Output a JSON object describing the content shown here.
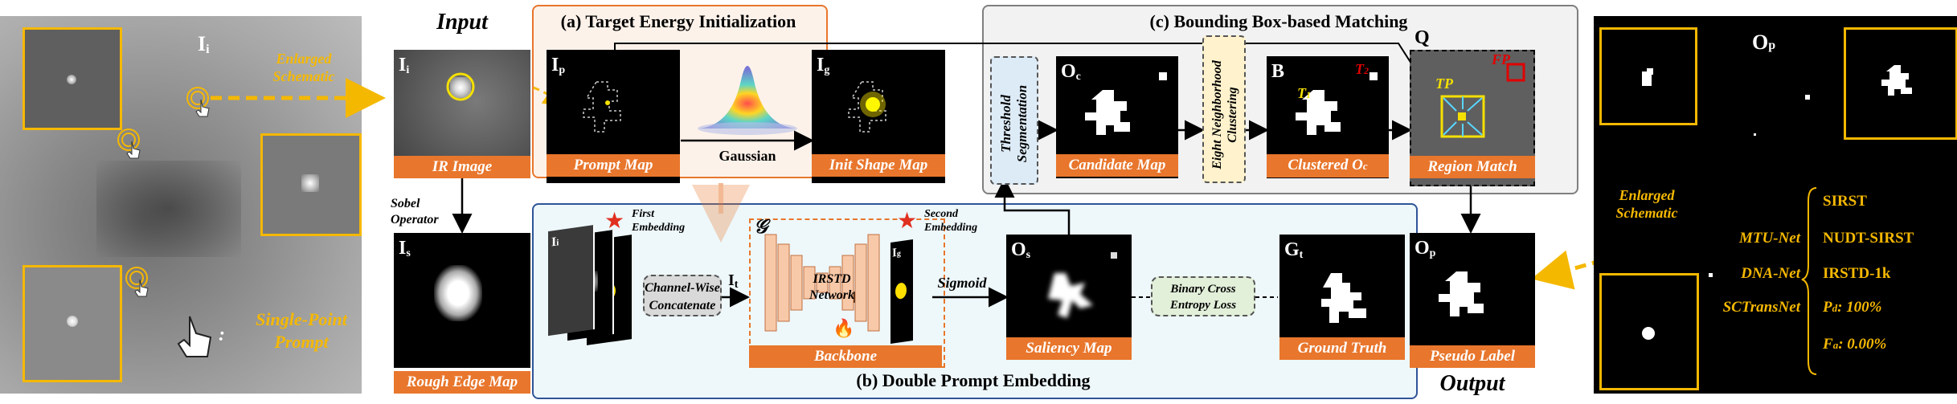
{
  "left_panel": {
    "label_main": "I",
    "label_sub": "i",
    "enlarged_schematic": "Enlarged Schematic",
    "single_point_prompt": "Single-Point Prompt",
    "colon": ":"
  },
  "input_section": {
    "title": "Input",
    "ir_image_label": "IR Image",
    "img_main": "I",
    "img_sub": "i",
    "sobel_operator": "Sobel Operator",
    "rough_edge_main": "I",
    "rough_edge_sub": "s",
    "rough_edge_label": "Rough Edge Map"
  },
  "section_a": {
    "title": "(a) Target Energy Initialization",
    "prompt_main": "I",
    "prompt_sub": "p",
    "prompt_label": "Prompt Map",
    "gaussian": "Gaussian",
    "init_main": "I",
    "init_sub": "g",
    "init_label": "Init Shape Map"
  },
  "section_b": {
    "title": "(b) Double Prompt Embedding",
    "first_embedding": "First Embedding",
    "second_embedding": "Second Embedding",
    "stack_labels": [
      "I",
      "I",
      "I"
    ],
    "stack_subs": [
      "i",
      "s",
      "g"
    ],
    "channel_concat": "Channel-Wise Concatenate",
    "it_main": "I",
    "it_sub": "t",
    "g_symbol": "𝒢",
    "network": "IRSTD Network",
    "backbone": "Backbone",
    "ig_main": "I",
    "ig_sub": "g",
    "sigmoid": "Sigmoid",
    "os_main": "O",
    "os_sub": "s",
    "saliency_label": "Saliency Map",
    "bce": "Binary Cross Entropy Loss",
    "gt_main": "G",
    "gt_sub": "t",
    "gt_label": "Ground Truth"
  },
  "section_c": {
    "title": "(c) Bounding Box-based Matching",
    "threshold": "Threshold Segmentation",
    "oc_main": "O",
    "oc_sub": "c",
    "candidate_label": "Candidate Map",
    "eight_neighborhood": "Eight Neighborhood Clustering",
    "b_main": "B",
    "t1_main": "T",
    "t1_sub": "1",
    "t2_main": "T",
    "t2_sub": "2",
    "clustered_label": "Clustered O",
    "clustered_sub": "c",
    "q_label": "Q",
    "tp": "TP",
    "fp": "FP",
    "region_match_label": "Region Match"
  },
  "output_section": {
    "op_main": "O",
    "op_sub": "p",
    "pseudo_label": "Pseudo Label",
    "title": "Output"
  },
  "right_panel": {
    "op_main": "O",
    "op_sub": "p",
    "enlarged_schematic": "Enlarged Schematic",
    "methods": [
      "MTU-Net",
      "DNA-Net",
      "SCTransNet"
    ],
    "datasets": [
      "SIRST",
      "NUDT-SIRST",
      "IRSTD-1k"
    ],
    "pd": "P",
    "pd_sub": "d",
    "pd_value": ":  100%",
    "fa": "F",
    "fa_sub": "a",
    "fa_value": ":  0.00%"
  },
  "colors": {
    "orange": "#e8762c",
    "yellow": "#f5b800",
    "blue_border": "#2f5597",
    "gray_border": "#7f7f7f",
    "light_orange_bg": "#fdf2ea",
    "light_blue_bg": "#eef8fb",
    "light_gray_bg": "#f2f2f2"
  }
}
